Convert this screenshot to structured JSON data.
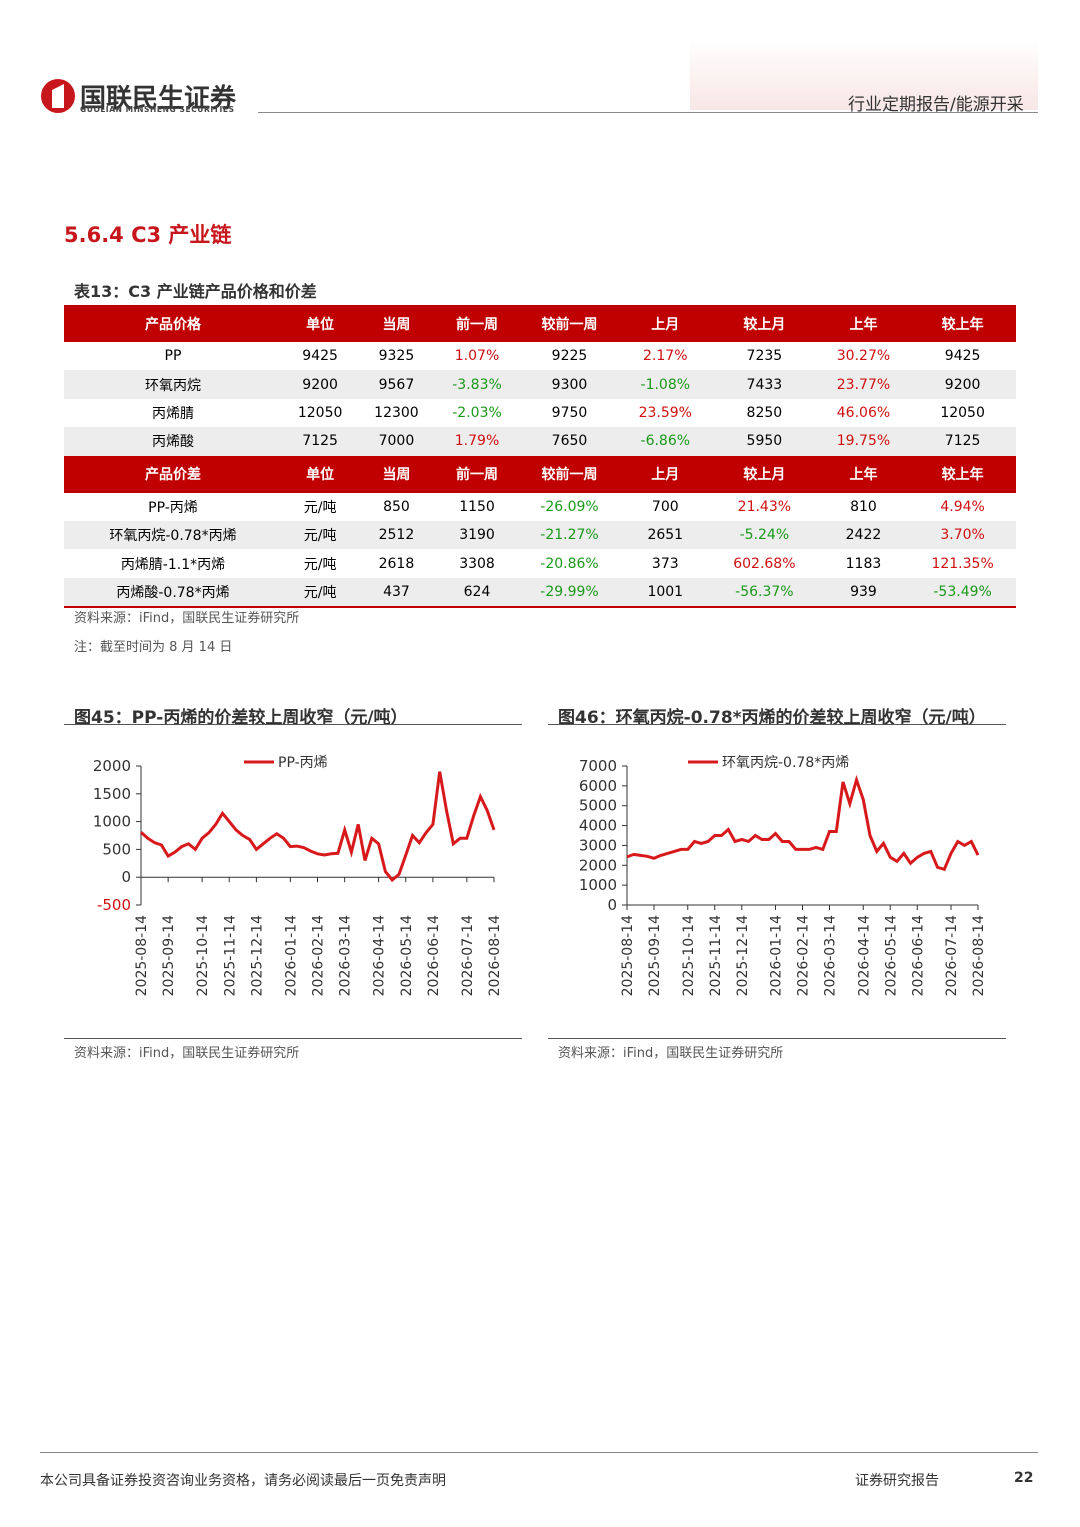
{
  "header": {
    "brand": "国联民生证券",
    "brand_en": "GUOLIAN MINSHENG SECURITIES",
    "report_type": "行业定期报告/能源开采"
  },
  "section_title": "5.6.4  C3 产业链",
  "table": {
    "title": "表13：C3 产业链产品价格和价差",
    "price_header": [
      "产品价格",
      "单位",
      "当周",
      "前一周",
      "较前一周",
      "上月",
      "较上月",
      "上年",
      "较上年"
    ],
    "price_rows": [
      [
        "PP",
        "9425",
        "9325",
        "1.07%",
        "9225",
        "2.17%",
        "7235",
        "30.27%",
        "9425"
      ],
      [
        "环氧丙烷",
        "9200",
        "9567",
        "-3.83%",
        "9300",
        "-1.08%",
        "7433",
        "23.77%",
        "9200"
      ],
      [
        "丙烯腈",
        "12050",
        "12300",
        "-2.03%",
        "9750",
        "23.59%",
        "8250",
        "46.06%",
        "12050"
      ],
      [
        "丙烯酸",
        "7125",
        "7000",
        "1.79%",
        "7650",
        "-6.86%",
        "5950",
        "19.75%",
        "7125"
      ]
    ],
    "spread_header": [
      "产品价差",
      "单位",
      "当周",
      "前一周",
      "较前一周",
      "上月",
      "较上月",
      "上年",
      "较上年"
    ],
    "spread_rows": [
      [
        "PP-丙烯",
        "元/吨",
        "850",
        "1150",
        "-26.09%",
        "700",
        "21.43%",
        "810",
        "4.94%"
      ],
      [
        "环氧丙烷-0.78*丙烯",
        "元/吨",
        "2512",
        "3190",
        "-21.27%",
        "2651",
        "-5.24%",
        "2422",
        "3.70%"
      ],
      [
        "丙烯腈-1.1*丙烯",
        "元/吨",
        "2618",
        "3308",
        "-20.86%",
        "373",
        "602.68%",
        "1183",
        "121.35%"
      ],
      [
        "丙烯酸-0.78*丙烯",
        "元/吨",
        "437",
        "624",
        "-29.99%",
        "1001",
        "-56.37%",
        "939",
        "-53.49%"
      ]
    ],
    "source": "资料来源：iFind，国联民生证券研究所",
    "note": "注：截至时间为 8 月 14 日"
  },
  "charts": [
    {
      "type": "line",
      "title": "图45：PP-丙烯的价差较上周收窄（元/吨）",
      "categories": [
        "2025-08-14",
        null,
        null,
        null,
        "2025-09-14",
        null,
        null,
        null,
        null,
        "2025-10-14",
        null,
        null,
        null,
        "2025-11-14",
        null,
        null,
        null,
        "2025-12-14",
        null,
        null,
        null,
        null,
        "2026-01-14",
        null,
        null,
        null,
        "2026-02-14",
        null,
        null,
        null,
        "2026-03-14",
        null,
        null,
        null,
        null,
        "2026-04-14",
        null,
        null,
        null,
        "2026-05-14",
        null,
        null,
        null,
        "2026-06-14",
        null,
        null,
        null,
        null,
        "2026-07-14",
        null,
        null,
        null,
        "2026-08-14"
      ],
      "series": [
        {
          "name": "PP-丙烯",
          "color": "#d7191c",
          "values": [
            810,
            700,
            620,
            580,
            380,
            450,
            550,
            600,
            500,
            700,
            800,
            950,
            1150,
            1000,
            850,
            750,
            680,
            500,
            600,
            700,
            780,
            700,
            550,
            560,
            530,
            470,
            420,
            400,
            420,
            430,
            850,
            450,
            950,
            300,
            700,
            600,
            100,
            -50,
            50,
            400,
            750,
            620,
            800,
            950,
            1900,
            1200,
            600,
            700,
            700,
            1100,
            1450,
            1200,
            850
          ]
        }
      ],
      "ylim": [
        -500,
        2000
      ],
      "yticks": [
        -500,
        0,
        500,
        1000,
        1500,
        2000
      ],
      "source": "资料来源：iFind，国联民生证券研究所"
    },
    {
      "type": "line",
      "title": "图46：环氧丙烷-0.78*丙烯的价差较上周收窄（元/吨）",
      "categories": [
        "2025-08-14",
        null,
        null,
        null,
        "2025-09-14",
        null,
        null,
        null,
        null,
        "2025-10-14",
        null,
        null,
        null,
        "2025-11-14",
        null,
        null,
        null,
        "2025-12-14",
        null,
        null,
        null,
        null,
        "2026-01-14",
        null,
        null,
        null,
        "2026-02-14",
        null,
        null,
        null,
        "2026-03-14",
        null,
        null,
        null,
        null,
        "2026-04-14",
        null,
        null,
        null,
        "2026-05-14",
        null,
        null,
        null,
        "2026-06-14",
        null,
        null,
        null,
        null,
        "2026-07-14",
        null,
        null,
        null,
        "2026-08-14"
      ],
      "series": [
        {
          "name": "环氧丙烷-0.78*丙烯",
          "color": "#d7191c",
          "values": [
            2422,
            2550,
            2500,
            2450,
            2350,
            2500,
            2600,
            2700,
            2800,
            2800,
            3200,
            3100,
            3200,
            3500,
            3500,
            3800,
            3200,
            3300,
            3200,
            3500,
            3300,
            3300,
            3600,
            3200,
            3200,
            2800,
            2800,
            2800,
            2900,
            2800,
            3700,
            3700,
            6200,
            5100,
            6300,
            5300,
            3500,
            2700,
            3100,
            2400,
            2200,
            2600,
            2100,
            2400,
            2600,
            2700,
            1900,
            1800,
            2600,
            3200,
            3000,
            3200,
            2512
          ]
        }
      ],
      "ylim": [
        0,
        7000
      ],
      "yticks": [
        0,
        1000,
        2000,
        3000,
        4000,
        5000,
        6000,
        7000
      ],
      "source": "资料来源：iFind，国联民生证券研究所"
    }
  ],
  "footer": {
    "disclaimer": "本公司具备证券投资咨询业务资格，请务必阅读最后一页免责声明",
    "label": "证券研究报告",
    "page": "22"
  }
}
